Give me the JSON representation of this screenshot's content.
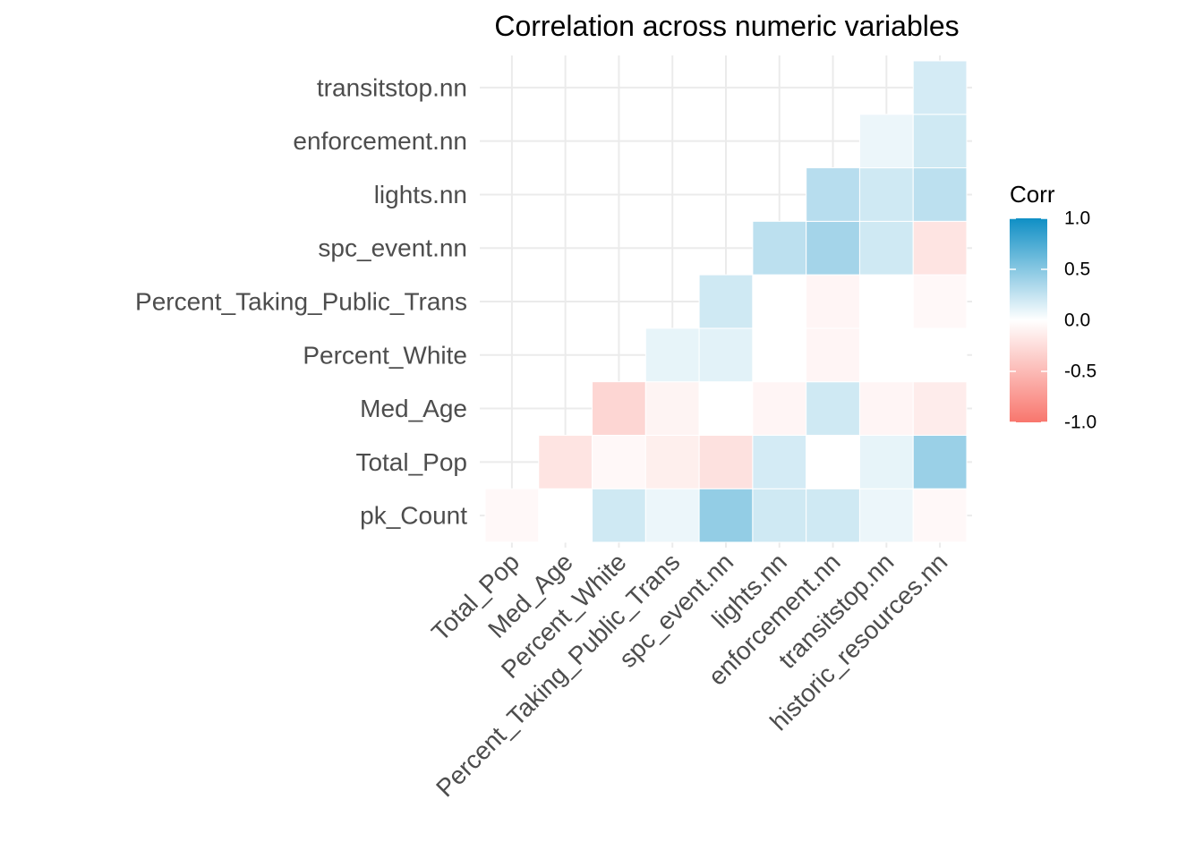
{
  "chart_data": {
    "type": "heatmap",
    "title": "Correlation across numeric variables",
    "x_categories": [
      "Total_Pop",
      "Med_Age",
      "Percent_White",
      "Percent_Taking_Public_Trans",
      "spc_event.nn",
      "lights.nn",
      "enforcement.nn",
      "transitstop.nn",
      "historic_resources.nn"
    ],
    "y_categories": [
      "pk_Count",
      "Total_Pop",
      "Med_Age",
      "Percent_White",
      "Percent_Taking_Public_Trans",
      "spc_event.nn",
      "lights.nn",
      "enforcement.nn",
      "transitstop.nn"
    ],
    "cells": [
      {
        "x": "Total_Pop",
        "y": "pk_Count",
        "value": -0.05
      },
      {
        "x": "Med_Age",
        "y": "pk_Count",
        "value": 0.0
      },
      {
        "x": "Percent_White",
        "y": "pk_Count",
        "value": 0.2
      },
      {
        "x": "Percent_Taking_Public_Trans",
        "y": "pk_Count",
        "value": 0.08
      },
      {
        "x": "spc_event.nn",
        "y": "pk_Count",
        "value": 0.45
      },
      {
        "x": "lights.nn",
        "y": "pk_Count",
        "value": 0.2
      },
      {
        "x": "enforcement.nn",
        "y": "pk_Count",
        "value": 0.2
      },
      {
        "x": "transitstop.nn",
        "y": "pk_Count",
        "value": 0.08
      },
      {
        "x": "historic_resources.nn",
        "y": "pk_Count",
        "value": -0.05
      },
      {
        "x": "Med_Age",
        "y": "Total_Pop",
        "value": -0.2
      },
      {
        "x": "Percent_White",
        "y": "Total_Pop",
        "value": -0.05
      },
      {
        "x": "Percent_Taking_Public_Trans",
        "y": "Total_Pop",
        "value": -0.12
      },
      {
        "x": "spc_event.nn",
        "y": "Total_Pop",
        "value": -0.22
      },
      {
        "x": "lights.nn",
        "y": "Total_Pop",
        "value": 0.18
      },
      {
        "x": "enforcement.nn",
        "y": "Total_Pop",
        "value": 0.0
      },
      {
        "x": "transitstop.nn",
        "y": "Total_Pop",
        "value": 0.1
      },
      {
        "x": "historic_resources.nn",
        "y": "Total_Pop",
        "value": 0.42
      },
      {
        "x": "Percent_White",
        "y": "Med_Age",
        "value": -0.3
      },
      {
        "x": "Percent_Taking_Public_Trans",
        "y": "Med_Age",
        "value": -0.08
      },
      {
        "x": "spc_event.nn",
        "y": "Med_Age",
        "value": 0.0
      },
      {
        "x": "lights.nn",
        "y": "Med_Age",
        "value": -0.07
      },
      {
        "x": "enforcement.nn",
        "y": "Med_Age",
        "value": 0.2
      },
      {
        "x": "transitstop.nn",
        "y": "Med_Age",
        "value": -0.07
      },
      {
        "x": "historic_resources.nn",
        "y": "Med_Age",
        "value": -0.14
      },
      {
        "x": "Percent_Taking_Public_Trans",
        "y": "Percent_White",
        "value": 0.1
      },
      {
        "x": "spc_event.nn",
        "y": "Percent_White",
        "value": 0.12
      },
      {
        "x": "lights.nn",
        "y": "Percent_White",
        "value": 0.0
      },
      {
        "x": "enforcement.nn",
        "y": "Percent_White",
        "value": -0.07
      },
      {
        "x": "transitstop.nn",
        "y": "Percent_White",
        "value": 0.0
      },
      {
        "x": "historic_resources.nn",
        "y": "Percent_White",
        "value": 0.0
      },
      {
        "x": "spc_event.nn",
        "y": "Percent_Taking_Public_Trans",
        "value": 0.2
      },
      {
        "x": "lights.nn",
        "y": "Percent_Taking_Public_Trans",
        "value": 0.0
      },
      {
        "x": "enforcement.nn",
        "y": "Percent_Taking_Public_Trans",
        "value": -0.07
      },
      {
        "x": "transitstop.nn",
        "y": "Percent_Taking_Public_Trans",
        "value": 0.0
      },
      {
        "x": "historic_resources.nn",
        "y": "Percent_Taking_Public_Trans",
        "value": -0.05
      },
      {
        "x": "lights.nn",
        "y": "spc_event.nn",
        "value": 0.28
      },
      {
        "x": "enforcement.nn",
        "y": "spc_event.nn",
        "value": 0.38
      },
      {
        "x": "transitstop.nn",
        "y": "spc_event.nn",
        "value": 0.2
      },
      {
        "x": "historic_resources.nn",
        "y": "spc_event.nn",
        "value": -0.2
      },
      {
        "x": "enforcement.nn",
        "y": "lights.nn",
        "value": 0.3
      },
      {
        "x": "transitstop.nn",
        "y": "lights.nn",
        "value": 0.2
      },
      {
        "x": "historic_resources.nn",
        "y": "lights.nn",
        "value": 0.28
      },
      {
        "x": "transitstop.nn",
        "y": "enforcement.nn",
        "value": 0.08
      },
      {
        "x": "historic_resources.nn",
        "y": "enforcement.nn",
        "value": 0.2
      },
      {
        "x": "historic_resources.nn",
        "y": "transitstop.nn",
        "value": 0.18
      }
    ],
    "legend": {
      "title": "Corr",
      "position": "right",
      "ticks": [
        1.0,
        0.5,
        0.0,
        -0.5,
        -1.0
      ],
      "tick_labels": [
        "1.0",
        "0.5",
        "0.0",
        "-0.5",
        "-1.0"
      ],
      "range": [
        -1,
        1
      ]
    },
    "colors": {
      "low": "#F8766D",
      "mid": "#FFFFFF",
      "high": "#0F8FC5",
      "grid": "#EBEBEB",
      "label": "#4D4D4D"
    }
  }
}
